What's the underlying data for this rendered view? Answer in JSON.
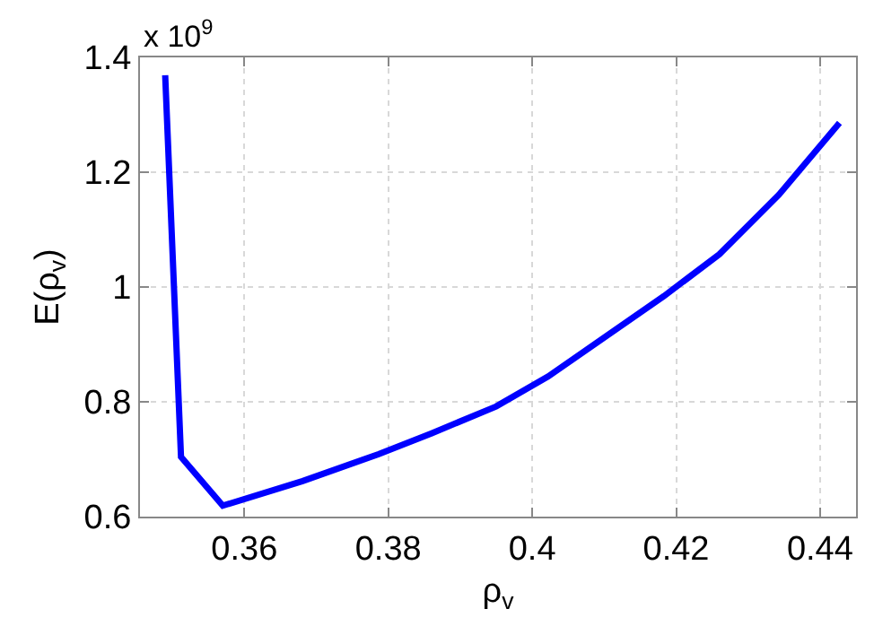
{
  "chart_data": {
    "type": "line",
    "xlabel": "ρ$_{v}$",
    "ylabel": "E(ρ$_{v}$)",
    "annotations": [
      "x 10$^{9}$"
    ],
    "x": [
      0.349,
      0.3512,
      0.357,
      0.3681,
      0.3787,
      0.386,
      0.395,
      0.4022,
      0.41,
      0.4183,
      0.426,
      0.4343,
      0.4427
    ],
    "series": [
      {
        "color": "#0000ff",
        "values": [
          1.369,
          0.704,
          0.619,
          0.662,
          0.709,
          0.745,
          0.792,
          0.844,
          0.912,
          0.984,
          1.057,
          1.161,
          1.286
        ]
      }
    ],
    "xlim": [
      0.3455,
      0.445
    ],
    "xticks": [
      0.36,
      0.38,
      0.4,
      0.42,
      0.44
    ],
    "ylim": [
      0.6,
      1.4
    ],
    "yticks": [
      0.6,
      0.8,
      1,
      1.2,
      1.4
    ],
    "grid": true,
    "marker": "none",
    "line_style": "solid"
  }
}
